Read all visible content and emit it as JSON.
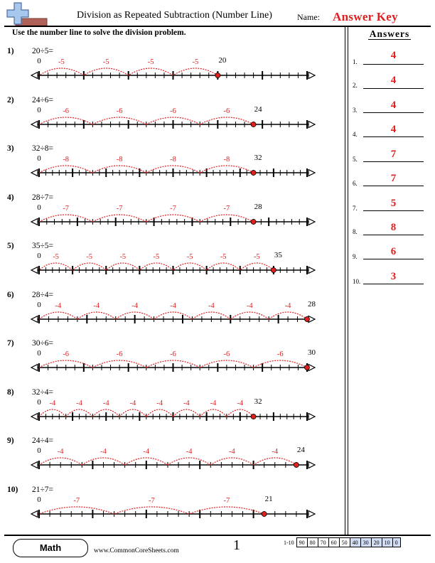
{
  "header": {
    "title": "Division as Repeated Subtraction (Number Line)",
    "name_label": "Name:",
    "answer_key": "Answer Key",
    "instruction": "Use the number line to solve the division problem."
  },
  "colors": {
    "accent_red": "#e01f1f",
    "logo_blue": "#a9c7ec",
    "logo_brown": "#b0625a",
    "score_highlight": "#d0ddf5"
  },
  "problems": [
    {
      "num": "1)",
      "text": "20÷5=",
      "dividend": 20,
      "divisor": 5,
      "max": 30
    },
    {
      "num": "2)",
      "text": "24÷6=",
      "dividend": 24,
      "divisor": 6,
      "max": 30
    },
    {
      "num": "3)",
      "text": "32÷8=",
      "dividend": 32,
      "divisor": 8,
      "max": 40
    },
    {
      "num": "4)",
      "text": "28÷7=",
      "dividend": 28,
      "divisor": 7,
      "max": 35
    },
    {
      "num": "5)",
      "text": "35÷5=",
      "dividend": 35,
      "divisor": 5,
      "max": 40
    },
    {
      "num": "6)",
      "text": "28÷4=",
      "dividend": 28,
      "divisor": 4,
      "max": 28
    },
    {
      "num": "7)",
      "text": "30÷6=",
      "dividend": 30,
      "divisor": 6,
      "max": 30
    },
    {
      "num": "8)",
      "text": "32÷4=",
      "dividend": 32,
      "divisor": 4,
      "max": 40
    },
    {
      "num": "9)",
      "text": "24÷4=",
      "dividend": 24,
      "divisor": 4,
      "max": 25
    },
    {
      "num": "10)",
      "text": "21÷7=",
      "dividend": 21,
      "divisor": 7,
      "max": 25
    }
  ],
  "zero_label": "0",
  "answers_title": "Answers",
  "answers": [
    {
      "num": "1.",
      "value": "4"
    },
    {
      "num": "2.",
      "value": "4"
    },
    {
      "num": "3.",
      "value": "4"
    },
    {
      "num": "4.",
      "value": "4"
    },
    {
      "num": "5.",
      "value": "7"
    },
    {
      "num": "6.",
      "value": "7"
    },
    {
      "num": "7.",
      "value": "5"
    },
    {
      "num": "8.",
      "value": "8"
    },
    {
      "num": "9.",
      "value": "6"
    },
    {
      "num": "10.",
      "value": "3"
    }
  ],
  "footer": {
    "subject": "Math",
    "website": "www.CommonCoreSheets.com",
    "page": "1",
    "score_label": "1-10",
    "scores": [
      "90",
      "80",
      "70",
      "60",
      "50",
      "40",
      "30",
      "20",
      "10",
      "0"
    ]
  }
}
